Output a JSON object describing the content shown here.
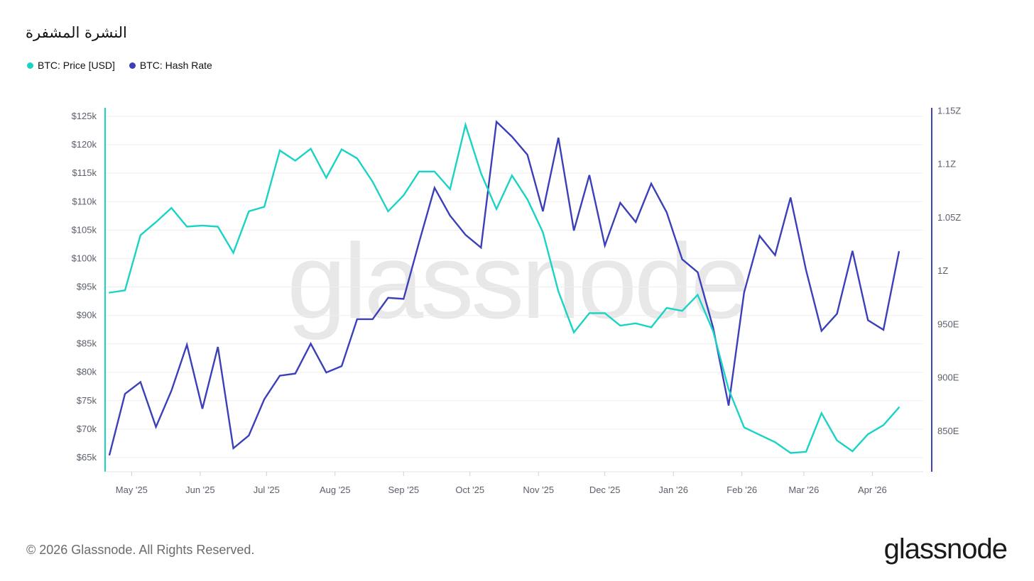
{
  "title": "النشرة المشفرة",
  "legend": [
    {
      "label": "BTC: Price [USD]",
      "color": "#19d3c5"
    },
    {
      "label": "BTC: Hash Rate",
      "color": "#3b3fb8"
    }
  ],
  "footer": "© 2026 Glassnode. All Rights Reserved.",
  "brand": "glassnode",
  "watermark": "glassnode",
  "chart_data": {
    "type": "line",
    "x_ticks": [
      "May '25",
      "Jun '25",
      "Jul '25",
      "Aug '25",
      "Sep '25",
      "Oct '25",
      "Nov '25",
      "Dec '25",
      "Jan '26",
      "Feb '26",
      "Mar '26",
      "Apr '26"
    ],
    "x_tick_dates": [
      "2025-05-01",
      "2025-06-01",
      "2025-07-01",
      "2025-08-01",
      "2025-09-01",
      "2025-10-01",
      "2025-11-01",
      "2025-12-01",
      "2026-01-01",
      "2026-02-01",
      "2026-03-01",
      "2026-04-01"
    ],
    "left_axis": {
      "ylim": [
        62500,
        126500
      ],
      "ticks": [
        65000,
        70000,
        75000,
        80000,
        85000,
        90000,
        95000,
        100000,
        105000,
        110000,
        115000,
        120000,
        125000
      ],
      "tick_labels": [
        "$65k",
        "$70k",
        "$75k",
        "$80k",
        "$85k",
        "$90k",
        "$95k",
        "$100k",
        "$105k",
        "$110k",
        "$115k",
        "$120k",
        "$125k"
      ],
      "color": "#19d3c5"
    },
    "right_axis": {
      "ylim": [
        812,
        1153
      ],
      "ticks": [
        850,
        900,
        950,
        1000,
        1050,
        1100,
        1150
      ],
      "tick_labels": [
        "850E",
        "900E",
        "950E",
        "1Z",
        "1.05Z",
        "1.1Z",
        "1.15Z"
      ],
      "color": "#3b3fb8"
    },
    "grid": true,
    "series": [
      {
        "name": "BTC: Price [USD]",
        "axis": "left",
        "color": "#19d3c5",
        "x": [
          "2025-04-21",
          "2025-04-28",
          "2025-05-05",
          "2025-05-12",
          "2025-05-19",
          "2025-05-26",
          "2025-06-02",
          "2025-06-09",
          "2025-06-16",
          "2025-06-23",
          "2025-06-30",
          "2025-07-07",
          "2025-07-14",
          "2025-07-21",
          "2025-07-28",
          "2025-08-04",
          "2025-08-11",
          "2025-08-18",
          "2025-08-25",
          "2025-09-01",
          "2025-09-08",
          "2025-09-15",
          "2025-09-22",
          "2025-09-29",
          "2025-10-06",
          "2025-10-13",
          "2025-10-20",
          "2025-10-27",
          "2025-11-03",
          "2025-11-10",
          "2025-11-17",
          "2025-11-24",
          "2025-12-01",
          "2025-12-08",
          "2025-12-15",
          "2025-12-22",
          "2025-12-29",
          "2026-01-05",
          "2026-01-12",
          "2026-01-19",
          "2026-01-26",
          "2026-02-02",
          "2026-02-09",
          "2026-02-16",
          "2026-02-23",
          "2026-03-02",
          "2026-03-09",
          "2026-03-16",
          "2026-03-23",
          "2026-03-30",
          "2026-04-06",
          "2026-04-13"
        ],
        "values": [
          94000,
          94400,
          104100,
          106400,
          108900,
          105600,
          105800,
          105600,
          101000,
          108300,
          109100,
          119000,
          117200,
          119300,
          114200,
          119200,
          117600,
          113500,
          108300,
          111100,
          115300,
          115300,
          112200,
          123500,
          115000,
          108700,
          114600,
          110400,
          104600,
          94200,
          87000,
          90400,
          90400,
          88200,
          88600,
          87900,
          91300,
          90800,
          93600,
          87200,
          77000,
          70300,
          69000,
          67700,
          65800,
          66000,
          72800,
          68000,
          66100,
          69100,
          70700,
          73800
        ]
      },
      {
        "name": "BTC: Hash Rate",
        "axis": "right",
        "color": "#3b3fb8",
        "x": [
          "2025-04-21",
          "2025-04-28",
          "2025-05-05",
          "2025-05-12",
          "2025-05-19",
          "2025-05-26",
          "2025-06-02",
          "2025-06-09",
          "2025-06-16",
          "2025-06-23",
          "2025-06-30",
          "2025-07-07",
          "2025-07-14",
          "2025-07-21",
          "2025-07-28",
          "2025-08-04",
          "2025-08-11",
          "2025-08-18",
          "2025-08-25",
          "2025-09-01",
          "2025-09-08",
          "2025-09-15",
          "2025-09-22",
          "2025-09-29",
          "2025-10-06",
          "2025-10-13",
          "2025-10-20",
          "2025-10-27",
          "2025-11-03",
          "2025-11-10",
          "2025-11-17",
          "2025-11-24",
          "2025-12-01",
          "2025-12-08",
          "2025-12-15",
          "2025-12-22",
          "2025-12-29",
          "2026-01-05",
          "2026-01-12",
          "2026-01-19",
          "2026-01-26",
          "2026-02-02",
          "2026-02-09",
          "2026-02-16",
          "2026-02-23",
          "2026-03-02",
          "2026-03-09",
          "2026-03-16",
          "2026-03-23",
          "2026-03-30",
          "2026-04-06",
          "2026-04-13"
        ],
        "values": [
          828,
          885,
          896,
          854,
          888,
          931,
          871,
          929,
          834,
          846,
          880,
          902,
          904,
          932,
          905,
          911,
          955,
          955,
          975,
          974,
          1027,
          1078,
          1052,
          1034,
          1022,
          1140,
          1126,
          1109,
          1056,
          1125,
          1038,
          1090,
          1024,
          1064,
          1046,
          1082,
          1055,
          1011,
          999,
          947,
          874,
          980,
          1033,
          1015,
          1069,
          1001,
          944,
          960,
          1019,
          954,
          945,
          1018
        ]
      }
    ]
  }
}
